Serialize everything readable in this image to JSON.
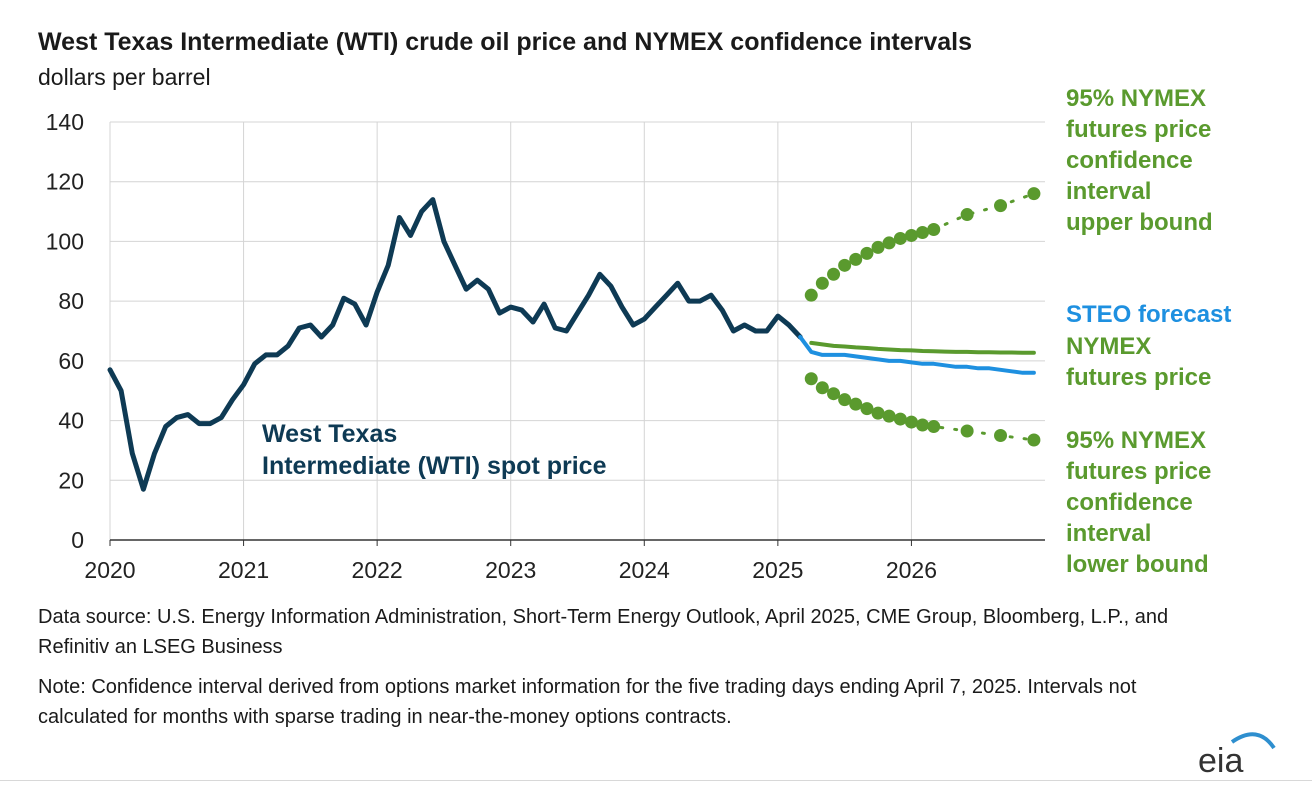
{
  "title": "West Texas Intermediate (WTI) crude oil price and NYMEX confidence intervals",
  "subtitle": "dollars per barrel",
  "colors": {
    "wti": "#0e3a54",
    "steo": "#1e90e0",
    "nymex": "#5a9a2e",
    "grid": "#d4d4d4",
    "logo_arc": "#2e8fcf"
  },
  "annotations": {
    "wti_line1": "West Texas",
    "wti_line2": "Intermediate (WTI) spot price",
    "upper_label": [
      "95% NYMEX",
      "futures price",
      "confidence",
      "interval",
      "upper bound"
    ],
    "steo_label": "STEO forecast",
    "nymex_label": [
      "NYMEX",
      "futures price"
    ],
    "lower_label": [
      "95% NYMEX",
      "futures price",
      "confidence",
      "interval",
      "lower bound"
    ]
  },
  "source": "Data source: U.S. Energy Information Administration, Short-Term Energy Outlook, April 2025, CME Group, Bloomberg, L.P., and Refinitiv an LSEG Business",
  "note": "Note: Confidence interval derived from options market information for the five trading days ending April 7, 2025. Intervals not calculated for months with sparse trading in near-the-money options contracts.",
  "logo_text": "eia",
  "chart_data": {
    "type": "line",
    "title": "West Texas Intermediate (WTI) crude oil price and NYMEX confidence intervals",
    "ylabel": "dollars per barrel",
    "xlabel": "",
    "ylim": [
      0,
      140
    ],
    "yticks": [
      0,
      20,
      40,
      60,
      80,
      100,
      120,
      140
    ],
    "xlim": [
      2020.0,
      2027.0
    ],
    "xticks": [
      "2020",
      "2021",
      "2022",
      "2023",
      "2024",
      "2025",
      "2026"
    ],
    "grid": "vertical at year boundaries, horizontal at y ticks",
    "series": [
      {
        "name": "West Texas Intermediate (WTI) spot price",
        "style": "solid",
        "x": [
          2020.0,
          2020.083,
          2020.167,
          2020.25,
          2020.333,
          2020.417,
          2020.5,
          2020.583,
          2020.667,
          2020.75,
          2020.833,
          2020.917,
          2021.0,
          2021.083,
          2021.167,
          2021.25,
          2021.333,
          2021.417,
          2021.5,
          2021.583,
          2021.667,
          2021.75,
          2021.833,
          2021.917,
          2022.0,
          2022.083,
          2022.167,
          2022.25,
          2022.333,
          2022.417,
          2022.5,
          2022.583,
          2022.667,
          2022.75,
          2022.833,
          2022.917,
          2023.0,
          2023.083,
          2023.167,
          2023.25,
          2023.333,
          2023.417,
          2023.5,
          2023.583,
          2023.667,
          2023.75,
          2023.833,
          2023.917,
          2024.0,
          2024.083,
          2024.167,
          2024.25,
          2024.333,
          2024.417,
          2024.5,
          2024.583,
          2024.667,
          2024.75,
          2024.833,
          2024.917,
          2025.0,
          2025.083,
          2025.167
        ],
        "values": [
          57,
          50,
          29,
          17,
          29,
          38,
          41,
          42,
          39,
          39,
          41,
          47,
          52,
          59,
          62,
          62,
          65,
          71,
          72,
          68,
          72,
          81,
          79,
          72,
          83,
          92,
          108,
          102,
          110,
          114,
          100,
          92,
          84,
          87,
          84,
          76,
          78,
          77,
          73,
          79,
          71,
          70,
          76,
          82,
          89,
          85,
          78,
          72,
          74,
          78,
          82,
          86,
          80,
          80,
          82,
          77,
          70,
          72,
          70,
          70,
          75,
          72,
          68
        ]
      },
      {
        "name": "STEO forecast",
        "style": "solid",
        "x": [
          2025.167,
          2025.25,
          2025.333,
          2025.417,
          2025.5,
          2025.583,
          2025.667,
          2025.75,
          2025.833,
          2025.917,
          2026.0,
          2026.083,
          2026.167,
          2026.25,
          2026.333,
          2026.417,
          2026.5,
          2026.583,
          2026.667,
          2026.75,
          2026.833,
          2026.917
        ],
        "values": [
          68,
          63,
          62,
          62,
          62,
          61.5,
          61,
          60.5,
          60,
          60,
          59.5,
          59,
          59,
          58.5,
          58,
          58,
          57.5,
          57.5,
          57,
          56.5,
          56,
          56
        ]
      },
      {
        "name": "NYMEX futures price",
        "style": "solid",
        "x": [
          2025.25,
          2025.333,
          2025.417,
          2025.5,
          2025.583,
          2025.667,
          2025.75,
          2025.833,
          2025.917,
          2026.0,
          2026.083,
          2026.167,
          2026.25,
          2026.333,
          2026.417,
          2026.5,
          2026.583,
          2026.667,
          2026.75,
          2026.833,
          2026.917
        ],
        "values": [
          66,
          65.5,
          65,
          64.8,
          64.5,
          64.3,
          64,
          63.8,
          63.6,
          63.5,
          63.3,
          63.2,
          63.1,
          63,
          63,
          62.9,
          62.9,
          62.8,
          62.8,
          62.7,
          62.7
        ]
      },
      {
        "name": "95% NYMEX futures price confidence interval upper bound",
        "style": "dotted",
        "x": [
          2025.25,
          2025.333,
          2025.417,
          2025.5,
          2025.583,
          2025.667,
          2025.75,
          2025.833,
          2025.917,
          2026.0,
          2026.083,
          2026.167,
          2026.417,
          2026.667,
          2026.917
        ],
        "values": [
          82,
          86,
          89,
          92,
          94,
          96,
          98,
          99.5,
          101,
          102,
          103,
          104,
          109,
          112,
          116
        ]
      },
      {
        "name": "95% NYMEX futures price confidence interval lower bound",
        "style": "dotted",
        "x": [
          2025.25,
          2025.333,
          2025.417,
          2025.5,
          2025.583,
          2025.667,
          2025.75,
          2025.833,
          2025.917,
          2026.0,
          2026.083,
          2026.167,
          2026.417,
          2026.667,
          2026.917
        ],
        "values": [
          54,
          51,
          49,
          47,
          45.5,
          44,
          42.5,
          41.5,
          40.5,
          39.5,
          38.5,
          38,
          36.5,
          35,
          33.5
        ]
      }
    ]
  }
}
